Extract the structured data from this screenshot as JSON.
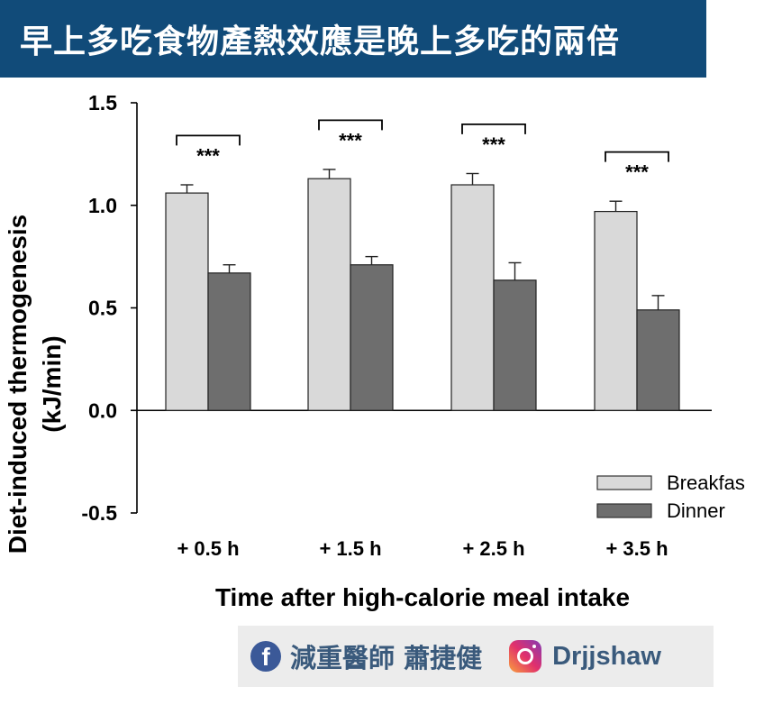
{
  "banner": {
    "title": "早上多吃食物產熱效應是晚上多吃的兩倍"
  },
  "chart_data": {
    "type": "bar",
    "title": "",
    "xlabel": "Time after high-calorie meal intake",
    "ylabel": [
      "Diet-induced thermogenesis",
      "(kJ/min)"
    ],
    "ylim": [
      -0.5,
      1.5
    ],
    "yticks": [
      1.5,
      1.0,
      0.5,
      0.0,
      -0.5
    ],
    "yticklabels": [
      "1.5",
      "1.0",
      "0.5",
      "0.0",
      "-0.5"
    ],
    "categories": [
      "+ 0.5 h",
      "+ 1.5 h",
      "+ 2.5 h",
      "+ 3.5 h"
    ],
    "series": [
      {
        "name": "Breakfast",
        "values": [
          1.06,
          1.13,
          1.1,
          0.97
        ],
        "errors": [
          0.04,
          0.045,
          0.055,
          0.05
        ],
        "color": "#d9d9d9"
      },
      {
        "name": "Dinner",
        "values": [
          0.67,
          0.71,
          0.635,
          0.49
        ],
        "errors": [
          0.04,
          0.04,
          0.085,
          0.07
        ],
        "color": "#6e6e6e"
      }
    ],
    "legend": {
      "position": "bottom-right",
      "labels": [
        "Breakfas",
        "Dinner"
      ]
    },
    "significance": [
      "***",
      "***",
      "***",
      "***"
    ],
    "grid": false
  },
  "footer": {
    "facebook_icon": "facebook-icon",
    "facebook_letter": "f",
    "name": "減重醫師 蕭捷健",
    "instagram_icon": "instagram-icon",
    "handle": "Drjjshaw"
  }
}
